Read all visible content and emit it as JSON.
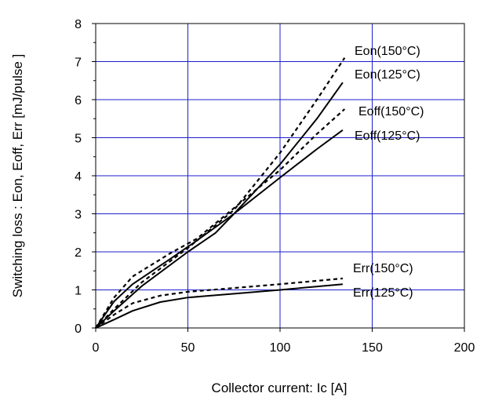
{
  "chart_data": {
    "type": "line",
    "title": "",
    "xlabel": "Collector current: Ic [A]",
    "ylabel": "Switching loss : Eon, Eoff, Err  [mJ/pulse ]",
    "xlim": [
      0,
      200
    ],
    "ylim": [
      0,
      8
    ],
    "x_ticks": [
      0,
      50,
      100,
      150,
      200
    ],
    "y_ticks": [
      0,
      1,
      2,
      3,
      4,
      5,
      6,
      7,
      8
    ],
    "grid": true,
    "grid_color": "#1f1fcc",
    "series": [
      {
        "name": "Eon(150°C)",
        "style": "dashed",
        "color": "#000000",
        "x": [
          0,
          10,
          25,
          50,
          75,
          100,
          120,
          135
        ],
        "y": [
          0,
          0.5,
          1.2,
          2.1,
          3.1,
          4.6,
          6.0,
          7.1
        ]
      },
      {
        "name": "Eon(125°C)",
        "style": "solid",
        "color": "#000000",
        "x": [
          0,
          10,
          25,
          50,
          65,
          75,
          100,
          120,
          134
        ],
        "y": [
          0,
          0.45,
          1.1,
          2.0,
          2.5,
          3.0,
          4.3,
          5.5,
          6.45
        ]
      },
      {
        "name": "Eoff(150°C)",
        "style": "dashed",
        "color": "#000000",
        "x": [
          0,
          10,
          20,
          40,
          55,
          75,
          100,
          120,
          135
        ],
        "y": [
          0,
          0.8,
          1.35,
          1.95,
          2.35,
          3.15,
          4.15,
          5.1,
          5.75
        ]
      },
      {
        "name": "Eoff(125°C)",
        "style": "solid",
        "color": "#000000",
        "x": [
          0,
          10,
          20,
          40,
          55,
          75,
          100,
          120,
          134
        ],
        "y": [
          0,
          0.7,
          1.15,
          1.8,
          2.3,
          3.0,
          3.95,
          4.7,
          5.2
        ]
      },
      {
        "name": "Err(150°C)",
        "style": "dashed",
        "color": "#000000",
        "x": [
          0,
          10,
          20,
          35,
          50,
          75,
          100,
          134
        ],
        "y": [
          0,
          0.35,
          0.65,
          0.85,
          0.95,
          1.05,
          1.15,
          1.3
        ]
      },
      {
        "name": "Err(125°C)",
        "style": "solid",
        "color": "#000000",
        "x": [
          0,
          10,
          20,
          35,
          50,
          75,
          100,
          134
        ],
        "y": [
          0,
          0.22,
          0.45,
          0.68,
          0.8,
          0.9,
          1.0,
          1.15
        ]
      }
    ]
  }
}
